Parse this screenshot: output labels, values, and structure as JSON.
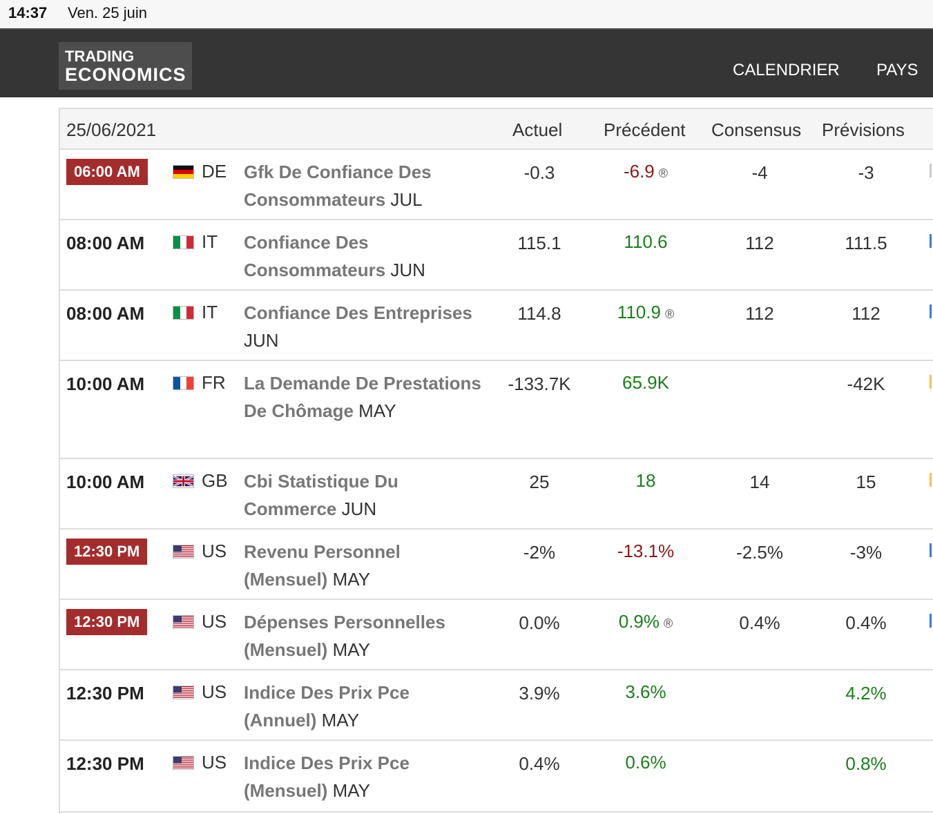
{
  "status_bar": {
    "time": "14:37",
    "date": "Ven. 25 juin"
  },
  "header": {
    "logo_line1": "TRADING",
    "logo_line2": "ECONOMICS",
    "nav": [
      "CALENDRIER",
      "PAYS"
    ]
  },
  "table": {
    "date": "25/06/2021",
    "columns": {
      "actual": "Actuel",
      "previous": "Précédent",
      "consensus": "Consensus",
      "forecast": "Prévisions"
    },
    "rows": [
      {
        "time": "06:00 AM",
        "highlight": true,
        "country": "DE",
        "event_name": "Gfk De Confiance Des Consommateurs",
        "period": "JUL",
        "actual": "-0.3",
        "previous": "-6.9",
        "previous_color": "red",
        "revised": "®",
        "consensus": "-4",
        "forecast": "-3",
        "forecast_color": ""
      },
      {
        "time": "08:00 AM",
        "highlight": false,
        "country": "IT",
        "event_name": "Confiance Des Consommateurs",
        "period": "JUN",
        "actual": "115.1",
        "previous": "110.6",
        "previous_color": "green",
        "revised": "",
        "consensus": "112",
        "forecast": "111.5",
        "forecast_color": ""
      },
      {
        "time": "08:00 AM",
        "highlight": false,
        "country": "IT",
        "event_name": "Confiance Des Entreprises",
        "period": "JUN",
        "actual": "114.8",
        "previous": "110.9",
        "previous_color": "green",
        "revised": "®",
        "consensus": "112",
        "forecast": "112",
        "forecast_color": ""
      },
      {
        "time": "10:00 AM",
        "highlight": false,
        "country": "FR",
        "event_name": "La Demande De Prestations De Chômage",
        "period": "MAY",
        "actual": "-133.7K",
        "previous": "65.9K",
        "previous_color": "green",
        "revised": "",
        "consensus": "",
        "forecast": "-42K",
        "forecast_color": ""
      },
      {
        "time": "10:00 AM",
        "highlight": false,
        "country": "GB",
        "event_name": "Cbi Statistique Du Commerce",
        "period": "JUN",
        "actual": "25",
        "previous": "18",
        "previous_color": "green",
        "revised": "",
        "consensus": "14",
        "forecast": "15",
        "forecast_color": ""
      },
      {
        "time": "12:30 PM",
        "highlight": true,
        "country": "US",
        "event_name": "Revenu Personnel (Mensuel)",
        "period": "MAY",
        "actual": "-2%",
        "previous": "-13.1%",
        "previous_color": "red",
        "revised": "",
        "consensus": "-2.5%",
        "forecast": "-3%",
        "forecast_color": ""
      },
      {
        "time": "12:30 PM",
        "highlight": true,
        "country": "US",
        "event_name": "Dépenses Personnelles (Mensuel)",
        "period": "MAY",
        "actual": "0.0%",
        "previous": "0.9%",
        "previous_color": "green",
        "revised": "®",
        "consensus": "0.4%",
        "forecast": "0.4%",
        "forecast_color": ""
      },
      {
        "time": "12:30 PM",
        "highlight": false,
        "country": "US",
        "event_name": "Indice Des Prix Pce (Annuel)",
        "period": "MAY",
        "actual": "3.9%",
        "previous": "3.6%",
        "previous_color": "green",
        "revised": "",
        "consensus": "",
        "forecast": "4.2%",
        "forecast_color": "green"
      },
      {
        "time": "12:30 PM",
        "highlight": false,
        "country": "US",
        "event_name": "Indice Des Prix Pce (Mensuel)",
        "period": "MAY",
        "actual": "0.4%",
        "previous": "0.6%",
        "previous_color": "green",
        "revised": "",
        "consensus": "",
        "forecast": "0.8%",
        "forecast_color": "green"
      }
    ]
  },
  "colors": {
    "header_bg": "#353535",
    "badge_red": "#a52c2c",
    "positive_green": "#1a7f1a",
    "negative_red": "#8b1a1a"
  }
}
